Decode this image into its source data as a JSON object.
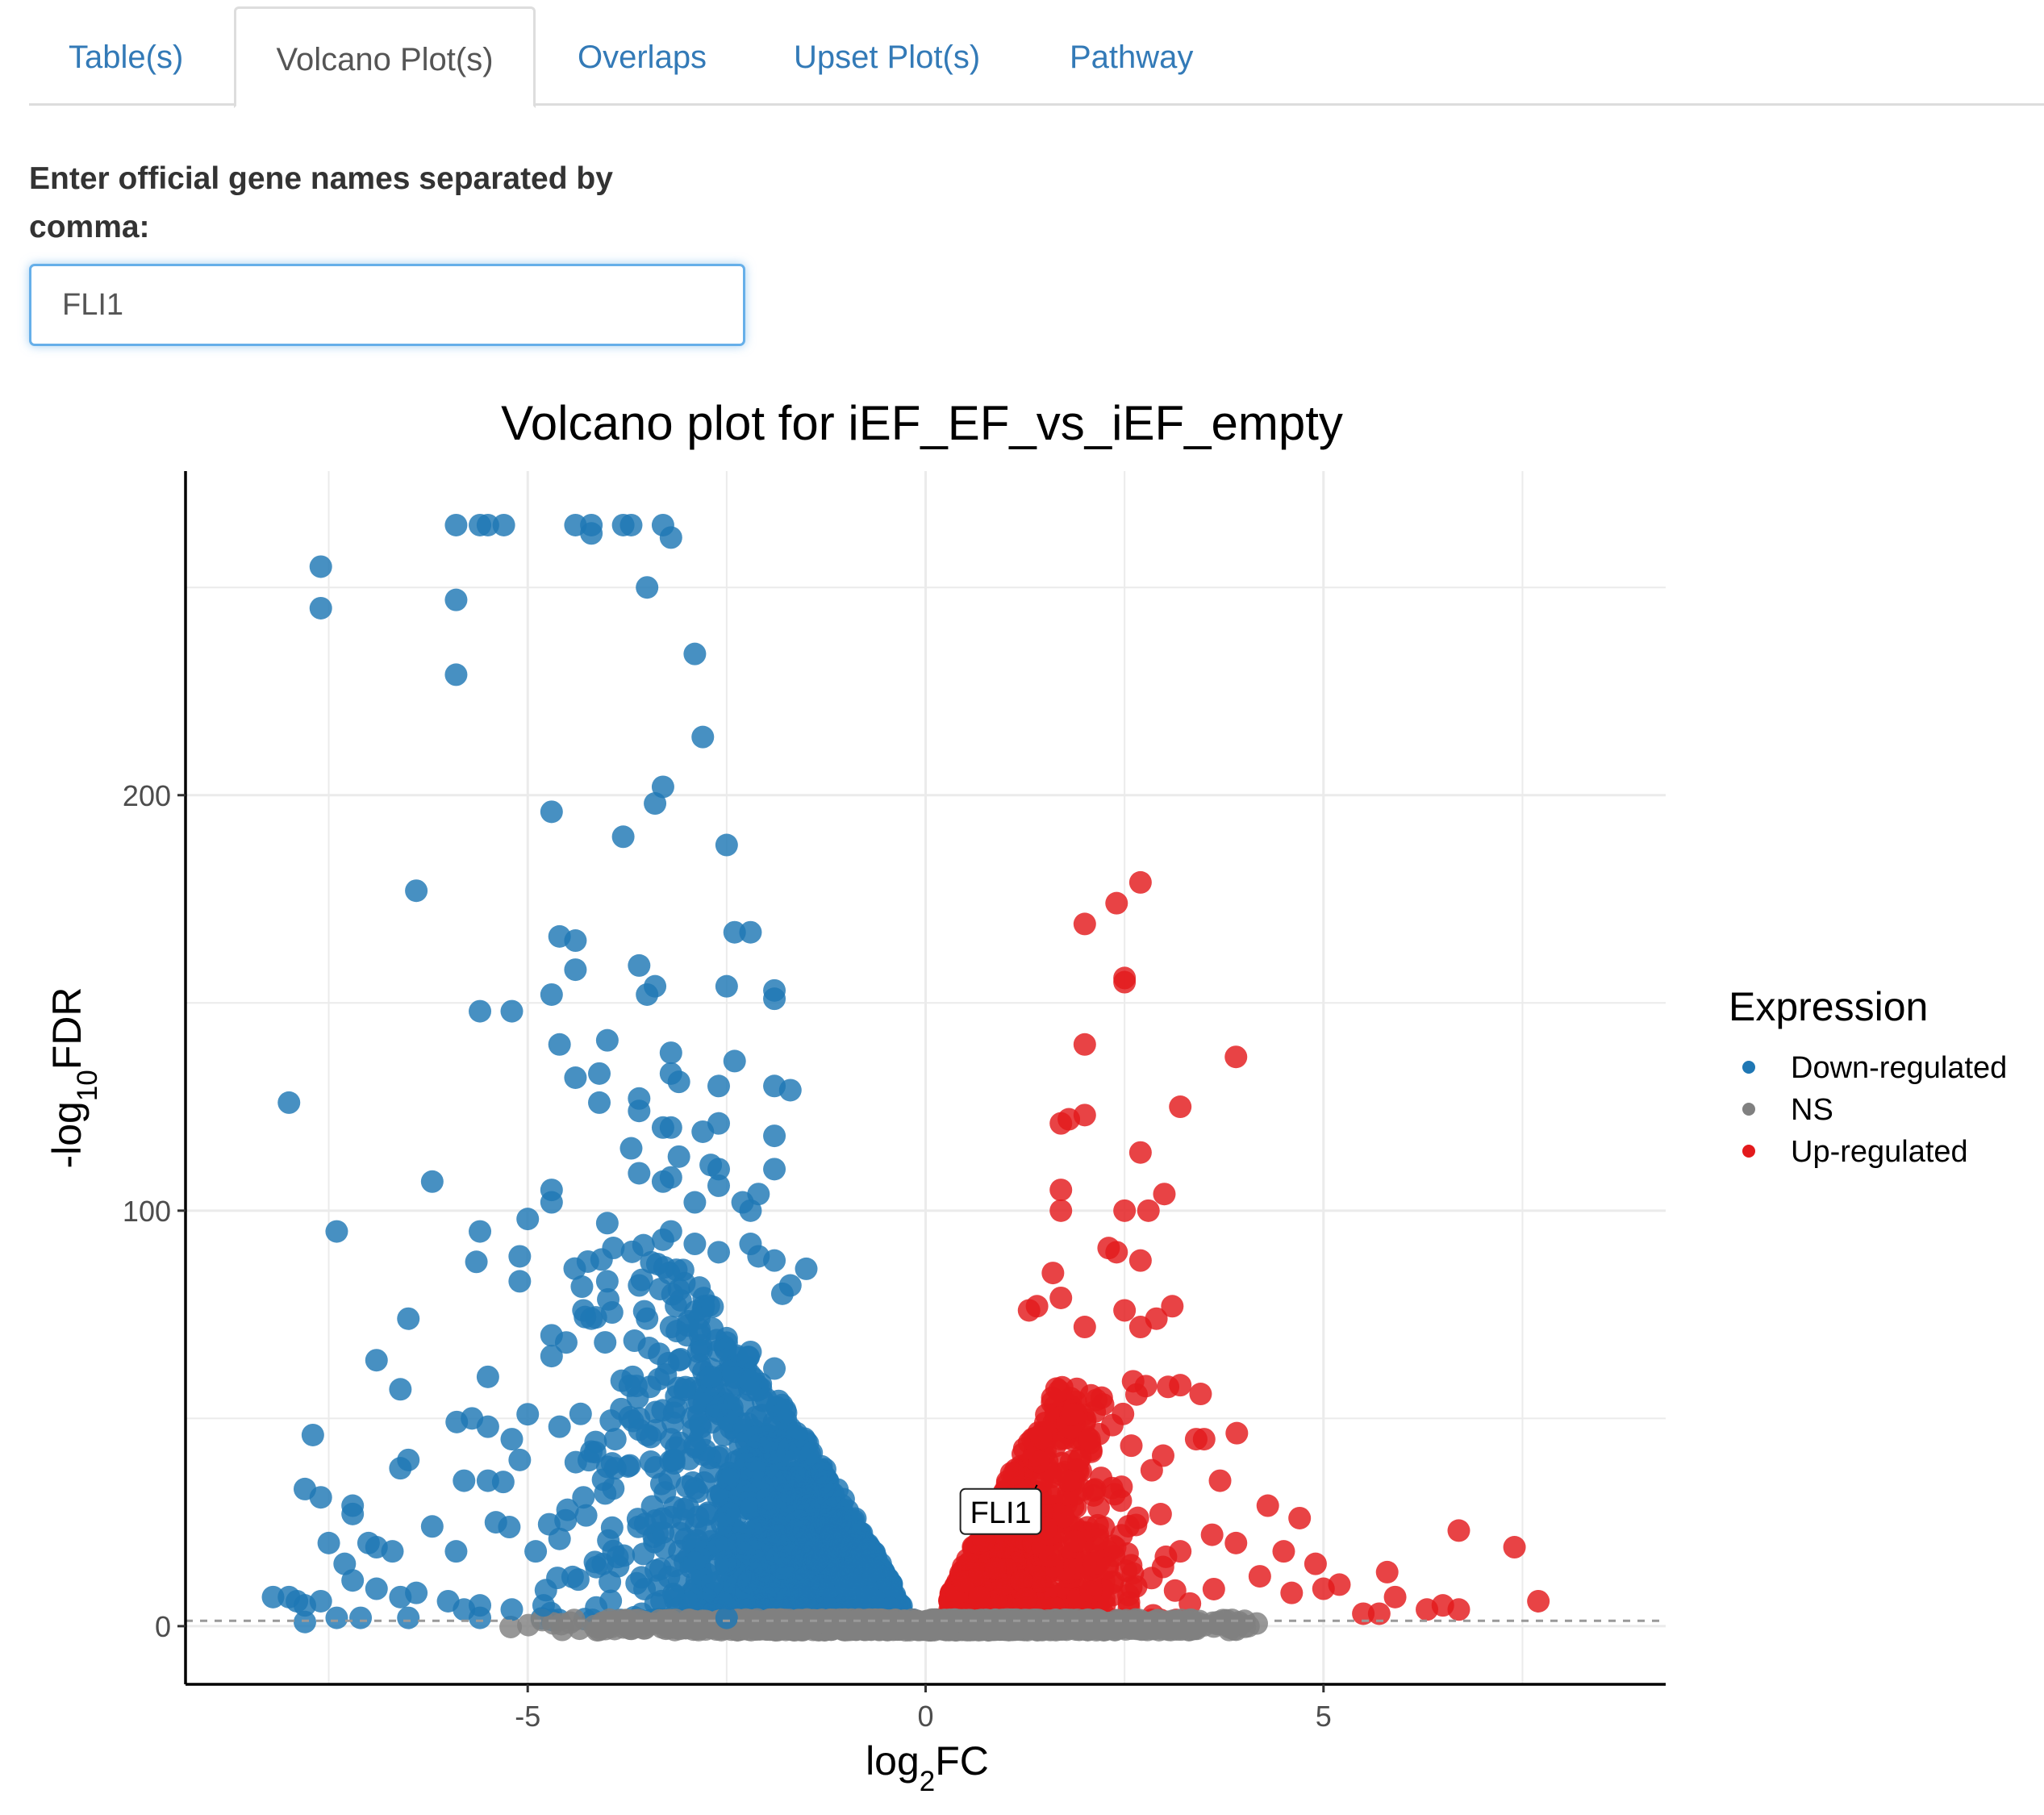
{
  "tabs": [
    {
      "label": "Table(s)",
      "active": false
    },
    {
      "label": "Volcano Plot(s)",
      "active": true
    },
    {
      "label": "Overlaps",
      "active": false
    },
    {
      "label": "Upset Plot(s)",
      "active": false
    },
    {
      "label": "Pathway",
      "active": false
    }
  ],
  "gene_input": {
    "label": "Enter official gene names separated by comma:",
    "value": "FLI1"
  },
  "colors": {
    "tab_link": "#337ab7",
    "input_focus": "#66afe9",
    "down": "#1f77b4",
    "ns": "#808080",
    "up": "#e31a1c"
  },
  "chart_data": {
    "type": "scatter",
    "title": "Volcano plot for iEF_EF_vs_iEF_empty",
    "xlabel": "log2FC",
    "ylabel": "-log10FDR",
    "xlim": [
      -9.3,
      9.3
    ],
    "ylim": [
      -14,
      278
    ],
    "x_ticks": [
      -5,
      0,
      5
    ],
    "x_tick_labels": [
      "-5",
      "0",
      "5"
    ],
    "y_ticks": [
      0,
      100,
      200
    ],
    "y_tick_labels": [
      "0",
      "100",
      "200"
    ],
    "grid": true,
    "threshold_line_y": 1.3,
    "legend": {
      "title": "Expression",
      "position": "right",
      "entries": [
        "Down-regulated",
        "NS",
        "Up-regulated"
      ]
    },
    "annotation": {
      "label": "FLI1",
      "x": 1.4,
      "y": 34
    },
    "series": [
      {
        "name": "Down-regulated",
        "color": "#1f77b4",
        "points": [
          [
            -5.9,
            265
          ],
          [
            -5.6,
            265
          ],
          [
            -5.5,
            265
          ],
          [
            -5.3,
            265
          ],
          [
            -4.4,
            265
          ],
          [
            -4.2,
            265
          ],
          [
            -3.8,
            265
          ],
          [
            -3.7,
            265
          ],
          [
            -3.3,
            265
          ],
          [
            -4.2,
            263
          ],
          [
            -3.2,
            262
          ],
          [
            -7.6,
            255
          ],
          [
            -7.6,
            245
          ],
          [
            -5.9,
            247
          ],
          [
            -3.5,
            250
          ],
          [
            -5.9,
            229
          ],
          [
            -2.9,
            234
          ],
          [
            -2.8,
            214
          ],
          [
            -3.3,
            202
          ],
          [
            -3.4,
            198
          ],
          [
            -4.7,
            196
          ],
          [
            -3.8,
            190
          ],
          [
            -2.5,
            188
          ],
          [
            -6.4,
            177
          ],
          [
            -4.6,
            166
          ],
          [
            -4.4,
            165
          ],
          [
            -2.4,
            167
          ],
          [
            -2.2,
            167
          ],
          [
            -4.4,
            158
          ],
          [
            -3.6,
            159
          ],
          [
            -3.4,
            154
          ],
          [
            -3.5,
            152
          ],
          [
            -2.5,
            154
          ],
          [
            -1.9,
            153
          ],
          [
            -1.9,
            151
          ],
          [
            -5.6,
            148
          ],
          [
            -5.2,
            148
          ],
          [
            -4.7,
            152
          ],
          [
            -4.6,
            140
          ],
          [
            -4.0,
            141
          ],
          [
            -3.2,
            138
          ],
          [
            -2.4,
            136
          ],
          [
            -3.2,
            133
          ],
          [
            -4.4,
            132
          ],
          [
            -4.1,
            133
          ],
          [
            -3.6,
            127
          ],
          [
            -3.1,
            131
          ],
          [
            -2.6,
            130
          ],
          [
            -1.9,
            130
          ],
          [
            -1.7,
            129
          ],
          [
            -8.0,
            126
          ],
          [
            -4.1,
            126
          ],
          [
            -3.6,
            124
          ],
          [
            -2.6,
            121
          ],
          [
            -3.3,
            120
          ],
          [
            -3.2,
            120
          ],
          [
            -2.8,
            119
          ],
          [
            -1.9,
            118
          ],
          [
            -3.7,
            115
          ],
          [
            -3.1,
            113
          ],
          [
            -2.7,
            111
          ],
          [
            -2.6,
            110
          ],
          [
            -1.9,
            110
          ],
          [
            -3.6,
            109
          ],
          [
            -3.3,
            107
          ],
          [
            -3.2,
            108
          ],
          [
            -2.6,
            106
          ],
          [
            -2.1,
            104
          ],
          [
            -6.2,
            107
          ],
          [
            -4.7,
            105
          ],
          [
            -4.7,
            102
          ],
          [
            -2.9,
            102
          ],
          [
            -2.3,
            102
          ],
          [
            -2.2,
            100
          ],
          [
            -7.4,
            95
          ],
          [
            -5.6,
            95
          ],
          [
            -5.0,
            98
          ],
          [
            -4.0,
            97
          ],
          [
            -3.2,
            95
          ],
          [
            -3.3,
            93
          ],
          [
            -2.9,
            92
          ],
          [
            -2.6,
            90
          ],
          [
            -2.2,
            92
          ],
          [
            -2.1,
            89
          ],
          [
            -1.9,
            88
          ],
          [
            -5.1,
            89
          ],
          [
            -4.0,
            83
          ],
          [
            -3.6,
            82
          ],
          [
            -3.1,
            81
          ],
          [
            -1.5,
            86
          ],
          [
            -1.7,
            82
          ],
          [
            -5.1,
            83
          ],
          [
            -4.3,
            76
          ],
          [
            -4.2,
            74
          ],
          [
            -3.5,
            74
          ],
          [
            -3.2,
            72
          ],
          [
            -3.0,
            70
          ],
          [
            -1.8,
            80
          ],
          [
            -6.5,
            74
          ],
          [
            -4.7,
            70
          ],
          [
            -6.9,
            64
          ],
          [
            -6.6,
            57
          ],
          [
            -5.5,
            60
          ],
          [
            -4.7,
            65
          ],
          [
            -3.1,
            64
          ],
          [
            -2.7,
            60
          ],
          [
            -2.2,
            66
          ],
          [
            -1.9,
            62
          ],
          [
            -7.7,
            46
          ],
          [
            -5.7,
            50
          ],
          [
            -5.5,
            48
          ],
          [
            -5.2,
            45
          ],
          [
            -5.0,
            51
          ],
          [
            -4.6,
            48
          ],
          [
            -4.2,
            42
          ],
          [
            -3.9,
            45
          ],
          [
            -3.6,
            50
          ],
          [
            -3.5,
            46
          ],
          [
            -3.2,
            45
          ],
          [
            -6.5,
            40
          ],
          [
            -6.6,
            38
          ],
          [
            -7.8,
            33
          ],
          [
            -7.6,
            31
          ],
          [
            -7.2,
            29
          ],
          [
            -7.2,
            27
          ],
          [
            -7.5,
            20
          ],
          [
            -7.0,
            20
          ],
          [
            -6.9,
            19
          ],
          [
            -6.7,
            18
          ],
          [
            -5.8,
            35
          ],
          [
            -5.5,
            35
          ],
          [
            -5.1,
            40
          ],
          [
            -5.4,
            25
          ],
          [
            -4.5,
            28
          ],
          [
            -4.3,
            31
          ],
          [
            -3.9,
            38
          ],
          [
            -8.2,
            7
          ],
          [
            -8.0,
            7
          ],
          [
            -7.9,
            6
          ],
          [
            -7.8,
            5
          ],
          [
            -7.6,
            6
          ],
          [
            -7.3,
            15
          ],
          [
            -7.2,
            11
          ],
          [
            -6.9,
            9
          ],
          [
            -6.6,
            7
          ],
          [
            -6.4,
            8
          ],
          [
            -6.0,
            6
          ],
          [
            -5.8,
            4
          ],
          [
            -5.6,
            5
          ],
          [
            -5.2,
            4
          ],
          [
            -4.8,
            5
          ],
          [
            -6.2,
            24
          ],
          [
            -5.9,
            18
          ],
          [
            -4.9,
            18
          ],
          [
            -4.6,
            21
          ],
          [
            -7.8,
            1
          ],
          [
            -7.4,
            2
          ],
          [
            -7.1,
            2
          ],
          [
            -6.5,
            2
          ],
          [
            -5.6,
            2
          ],
          [
            -2.5,
            2
          ]
        ]
      },
      {
        "name": "NS",
        "color": "#808080",
        "points": []
      },
      {
        "name": "Up-regulated",
        "color": "#e31a1c",
        "points": [
          [
            2.7,
            179
          ],
          [
            2.4,
            174
          ],
          [
            2.0,
            169
          ],
          [
            2.5,
            156
          ],
          [
            2.5,
            155
          ],
          [
            3.9,
            137
          ],
          [
            2.0,
            140
          ],
          [
            3.2,
            125
          ],
          [
            2.0,
            123
          ],
          [
            1.8,
            122
          ],
          [
            1.7,
            121
          ],
          [
            2.7,
            114
          ],
          [
            1.7,
            105
          ],
          [
            3.0,
            104
          ],
          [
            1.7,
            100
          ],
          [
            2.5,
            100
          ],
          [
            2.8,
            100
          ],
          [
            2.3,
            91
          ],
          [
            2.4,
            90
          ],
          [
            2.7,
            88
          ],
          [
            1.6,
            85
          ],
          [
            1.3,
            76
          ],
          [
            1.4,
            77
          ],
          [
            1.7,
            79
          ],
          [
            2.5,
            76
          ],
          [
            2.7,
            72
          ],
          [
            2.9,
            74
          ],
          [
            3.1,
            77
          ],
          [
            2.0,
            72
          ],
          [
            3.2,
            58
          ],
          [
            3.4,
            45
          ],
          [
            3.5,
            45
          ],
          [
            3.7,
            35
          ],
          [
            4.3,
            29
          ],
          [
            4.7,
            26
          ],
          [
            4.5,
            18
          ],
          [
            4.9,
            15
          ],
          [
            4.2,
            12
          ],
          [
            4.6,
            8
          ],
          [
            5.2,
            10
          ],
          [
            5.0,
            9
          ],
          [
            5.8,
            13
          ],
          [
            5.9,
            7
          ],
          [
            6.7,
            23
          ],
          [
            7.4,
            19
          ],
          [
            7.7,
            6
          ],
          [
            6.3,
            4
          ],
          [
            6.5,
            5
          ],
          [
            6.7,
            4
          ],
          [
            5.5,
            3
          ],
          [
            5.7,
            3
          ],
          [
            3.2,
            18
          ],
          [
            3.6,
            22
          ],
          [
            3.9,
            20
          ]
        ]
      }
    ]
  }
}
